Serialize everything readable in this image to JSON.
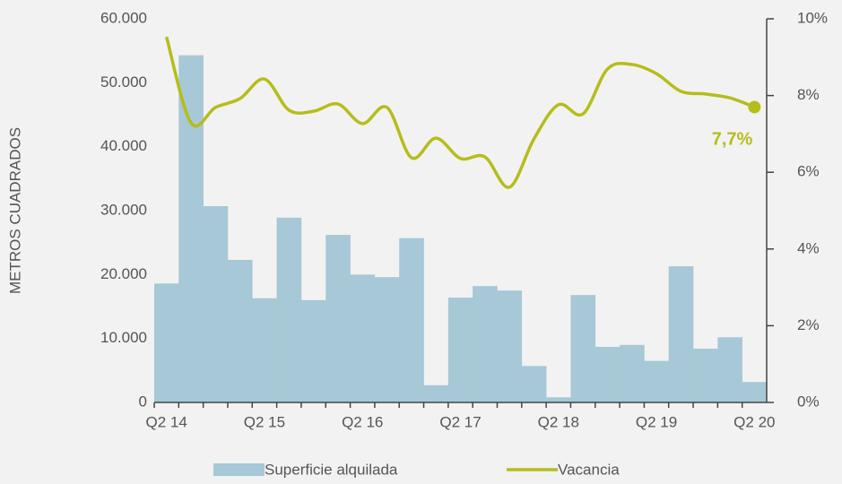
{
  "chart_data": {
    "type": "bar_line",
    "y_axis_label": "METROS CUADRADOS",
    "categories": [
      "Q2 14",
      null,
      null,
      null,
      "Q2 15",
      null,
      null,
      null,
      "Q2 16",
      null,
      null,
      null,
      "Q2 17",
      null,
      null,
      null,
      "Q2 18",
      null,
      null,
      null,
      "Q2 19",
      null,
      null,
      null,
      "Q2 20"
    ],
    "series": [
      {
        "name": "Superficie alquilada",
        "type": "bar",
        "color": "#a7c8d6",
        "values": [
          18600,
          54300,
          30700,
          22300,
          16300,
          28900,
          16000,
          26200,
          20000,
          19600,
          25700,
          2700,
          16400,
          18200,
          17500,
          5700,
          800,
          16800,
          8700,
          9000,
          6500,
          21300,
          8400,
          10200,
          3200
        ]
      },
      {
        "name": "Vacancia",
        "type": "line",
        "axis": "y2",
        "color": "#b5bd1a",
        "values": [
          9.53,
          7.29,
          7.69,
          7.92,
          8.43,
          7.62,
          7.59,
          7.78,
          7.27,
          7.69,
          6.38,
          6.89,
          6.36,
          6.4,
          5.61,
          6.87,
          7.76,
          7.52,
          8.69,
          8.81,
          8.57,
          8.11,
          8.04,
          7.94,
          7.7
        ],
        "value_labels": [
          null,
          null,
          null,
          null,
          null,
          null,
          null,
          null,
          null,
          null,
          null,
          null,
          null,
          null,
          null,
          null,
          null,
          null,
          null,
          null,
          null,
          null,
          null,
          null,
          "7,7%"
        ]
      }
    ],
    "ylim": [
      0,
      60000
    ],
    "yticks": [
      0,
      {
        "value": 10000,
        "label": "10.000"
      },
      {
        "value": 20000,
        "label": "20.000"
      },
      {
        "value": 30000,
        "label": "30.000"
      },
      {
        "value": 40000,
        "label": "40.000"
      },
      {
        "value": 50000,
        "label": "50.000"
      },
      {
        "value": 60000,
        "label": "60.000"
      }
    ],
    "y2lim": [
      0,
      10
    ],
    "y2ticks": [
      {
        "value": 0,
        "label": "0%"
      },
      {
        "value": 2,
        "label": "2%"
      },
      {
        "value": 4,
        "label": "4%"
      },
      {
        "value": 6,
        "label": "6%"
      },
      {
        "value": 8,
        "label": "8%"
      },
      {
        "value": 10,
        "label": "10%"
      }
    ],
    "legend": "bottom"
  }
}
